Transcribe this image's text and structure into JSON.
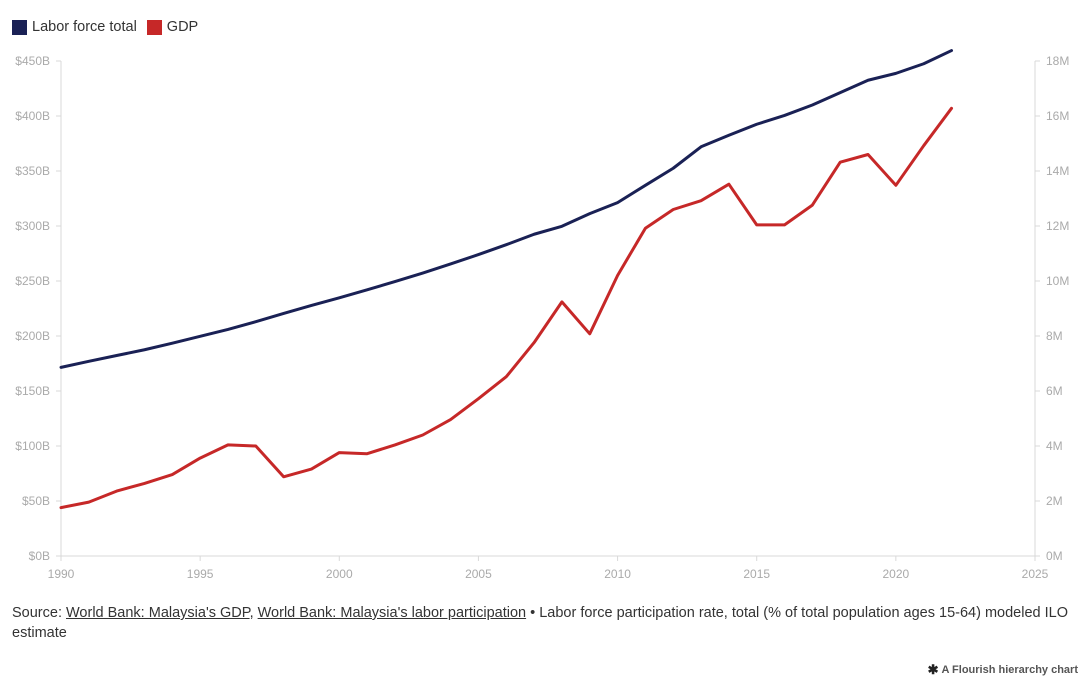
{
  "chart_data": {
    "type": "line",
    "title": "",
    "xlabel": "",
    "ylabel_left": "",
    "ylabel_right": "",
    "legend_position": "top-left",
    "x_ticks": [
      "1990",
      "1995",
      "2000",
      "2005",
      "2010",
      "2015",
      "2020",
      "2025"
    ],
    "y_left_ticks": [
      "$0B",
      "$50B",
      "$100B",
      "$150B",
      "$200B",
      "$250B",
      "$300B",
      "$350B",
      "$400B",
      "$450B"
    ],
    "y_right_ticks": [
      "0M",
      "2M",
      "4M",
      "6M",
      "8M",
      "10M",
      "12M",
      "14M",
      "16M",
      "18M"
    ],
    "xlim": [
      1990,
      2025
    ],
    "ylim_left": [
      0,
      450
    ],
    "ylim_right": [
      0,
      18
    ],
    "grid": false,
    "series": [
      {
        "name": "Labor force total",
        "axis": "right",
        "color": "#1a2155",
        "unit": "M",
        "x": [
          1990,
          1991,
          1992,
          1993,
          1994,
          1995,
          1996,
          1997,
          1998,
          1999,
          2000,
          2001,
          2002,
          2003,
          2004,
          2005,
          2006,
          2007,
          2008,
          2009,
          2010,
          2011,
          2012,
          2013,
          2014,
          2015,
          2016,
          2017,
          2018,
          2019,
          2020,
          2021,
          2022
        ],
        "values": [
          6.86,
          7.08,
          7.29,
          7.5,
          7.74,
          7.99,
          8.24,
          8.52,
          8.82,
          9.11,
          9.39,
          9.68,
          9.98,
          10.29,
          10.62,
          10.96,
          11.32,
          11.7,
          11.99,
          12.45,
          12.85,
          13.48,
          14.1,
          14.88,
          15.3,
          15.7,
          16.02,
          16.4,
          16.85,
          17.3,
          17.55,
          17.9,
          18.38
        ]
      },
      {
        "name": "GDP",
        "axis": "left",
        "color": "#c62828",
        "unit": "B",
        "x": [
          1990,
          1991,
          1992,
          1993,
          1994,
          1995,
          1996,
          1997,
          1998,
          1999,
          2000,
          2001,
          2002,
          2003,
          2004,
          2005,
          2006,
          2007,
          2008,
          2009,
          2010,
          2011,
          2012,
          2013,
          2014,
          2015,
          2016,
          2017,
          2018,
          2019,
          2020,
          2021,
          2022
        ],
        "values": [
          44,
          49,
          59,
          66,
          74,
          89,
          101,
          100,
          72,
          79,
          94,
          93,
          101,
          110,
          124,
          143,
          163,
          194,
          231,
          202,
          255,
          298,
          315,
          323,
          338,
          301,
          301,
          319,
          358,
          365,
          337,
          373,
          407
        ]
      }
    ]
  },
  "footer": {
    "source_prefix": "Source: ",
    "link_gdp": "World Bank: Malaysia's GDP",
    "separator": ", ",
    "link_labor": "World Bank: Malaysia's labor participation",
    "note": " • Labor force participation rate, total (% of total population ages 15-64) modeled ILO estimate"
  },
  "credit": {
    "icon": "flourish-star-icon",
    "text": "A Flourish hierarchy chart"
  }
}
